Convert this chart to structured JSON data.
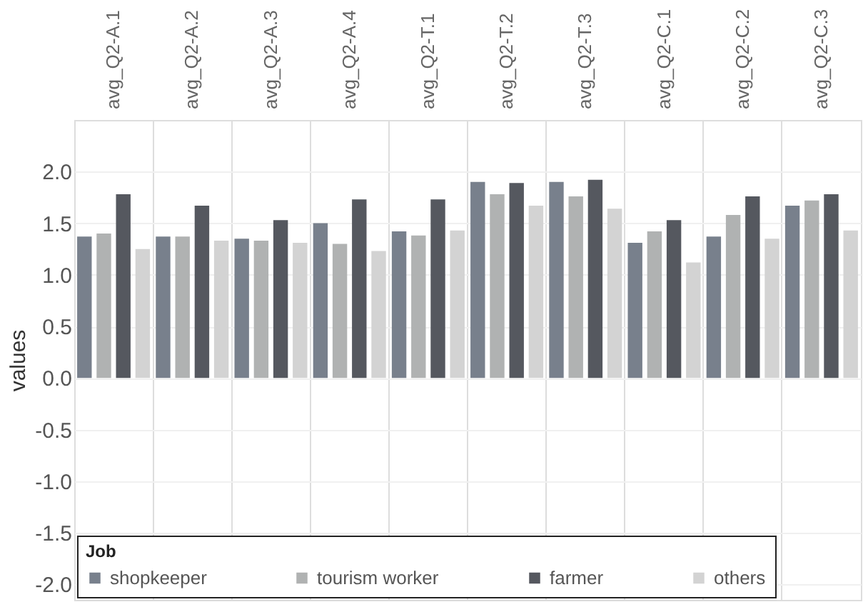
{
  "chart_data": {
    "type": "bar",
    "ylabel": "values",
    "legend_title": "Job",
    "legend": "bottom",
    "grid": true,
    "categories": [
      "avg_Q2-A.1",
      "avg_Q2-A.2",
      "avg_Q2-A.3",
      "avg_Q2-A.4",
      "avg_Q2-T.1",
      "avg_Q2-T.2",
      "avg_Q2-T.3",
      "avg_Q2-C.1",
      "avg_Q2-C.2",
      "avg_Q2-C.3"
    ],
    "series": [
      {
        "name": "shopkeeper",
        "color": "#78808c",
        "values": [
          1.37,
          1.37,
          1.35,
          1.5,
          1.42,
          1.9,
          1.9,
          1.31,
          1.37,
          1.67
        ]
      },
      {
        "name": "tourism worker",
        "color": "#b0b2b2",
        "values": [
          1.4,
          1.37,
          1.33,
          1.3,
          1.38,
          1.78,
          1.76,
          1.42,
          1.58,
          1.72
        ]
      },
      {
        "name": "farmer",
        "color": "#55585f",
        "values": [
          1.78,
          1.67,
          1.53,
          1.73,
          1.73,
          1.89,
          1.92,
          1.53,
          1.76,
          1.78
        ]
      },
      {
        "name": "others",
        "color": "#d3d3d3",
        "values": [
          1.25,
          1.33,
          1.31,
          1.23,
          1.43,
          1.67,
          1.64,
          1.12,
          1.35,
          1.43
        ]
      }
    ],
    "ylim": [
      -2.15,
      2.5
    ],
    "yticks": [
      {
        "value": -2,
        "label": "-2.0"
      },
      {
        "value": -1.5,
        "label": "-1.5"
      },
      {
        "value": -1,
        "label": "-1.0"
      },
      {
        "value": -0.5,
        "label": "-0.5"
      },
      {
        "value": 0,
        "label": "0.0"
      },
      {
        "value": 0.5,
        "label": "0.5"
      },
      {
        "value": 1,
        "label": "1.0"
      },
      {
        "value": 1.5,
        "label": "1.5"
      },
      {
        "value": 2,
        "label": "2.0"
      }
    ]
  }
}
